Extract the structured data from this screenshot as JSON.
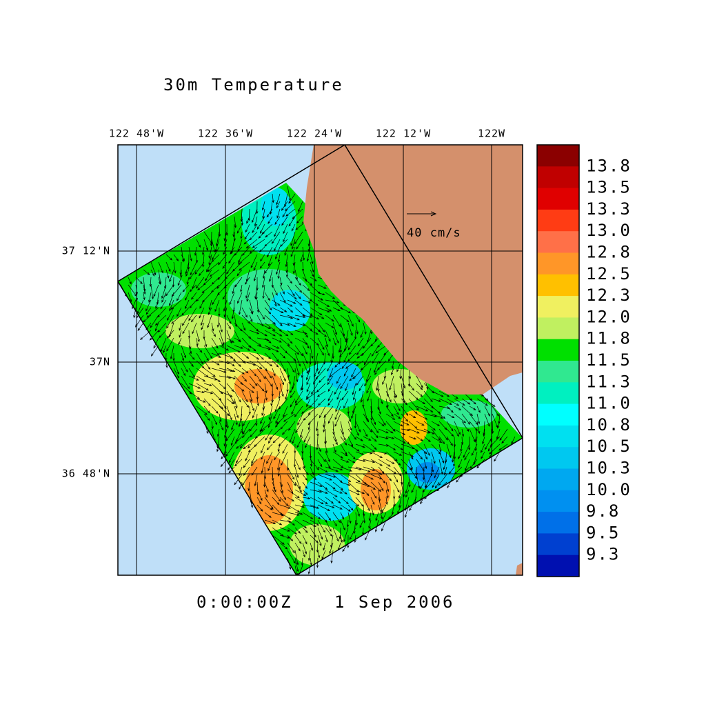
{
  "title": "30m Temperature",
  "map": {
    "lon_labels": [
      "122 48'W",
      "122 36'W",
      "122 24'W",
      "122 12'W",
      "122W"
    ],
    "lat_labels": [
      "37 12'N",
      "37N",
      "36 48'N"
    ],
    "vector_label": "40 cm/s",
    "time": "0:00:00Z",
    "date": "1 Sep 2006"
  },
  "colorbar": {
    "labels": [
      "13.8",
      "13.5",
      "13.3",
      "13.0",
      "12.8",
      "12.5",
      "12.3",
      "12.0",
      "11.8",
      "11.5",
      "11.3",
      "11.0",
      "10.8",
      "10.5",
      "10.3",
      "10.0",
      "9.8",
      "9.5",
      "9.3"
    ],
    "colors": [
      "#8b0000",
      "#c00000",
      "#e00000",
      "#ff3c14",
      "#ff7048",
      "#ff9628",
      "#ffc000",
      "#f0f060",
      "#c0f060",
      "#00e000",
      "#30e890",
      "#00f0c0",
      "#00ffff",
      "#00e0f0",
      "#00c8f0",
      "#00a8f0",
      "#0090f0",
      "#0070e8",
      "#0040d0",
      "#0010b0"
    ]
  }
}
